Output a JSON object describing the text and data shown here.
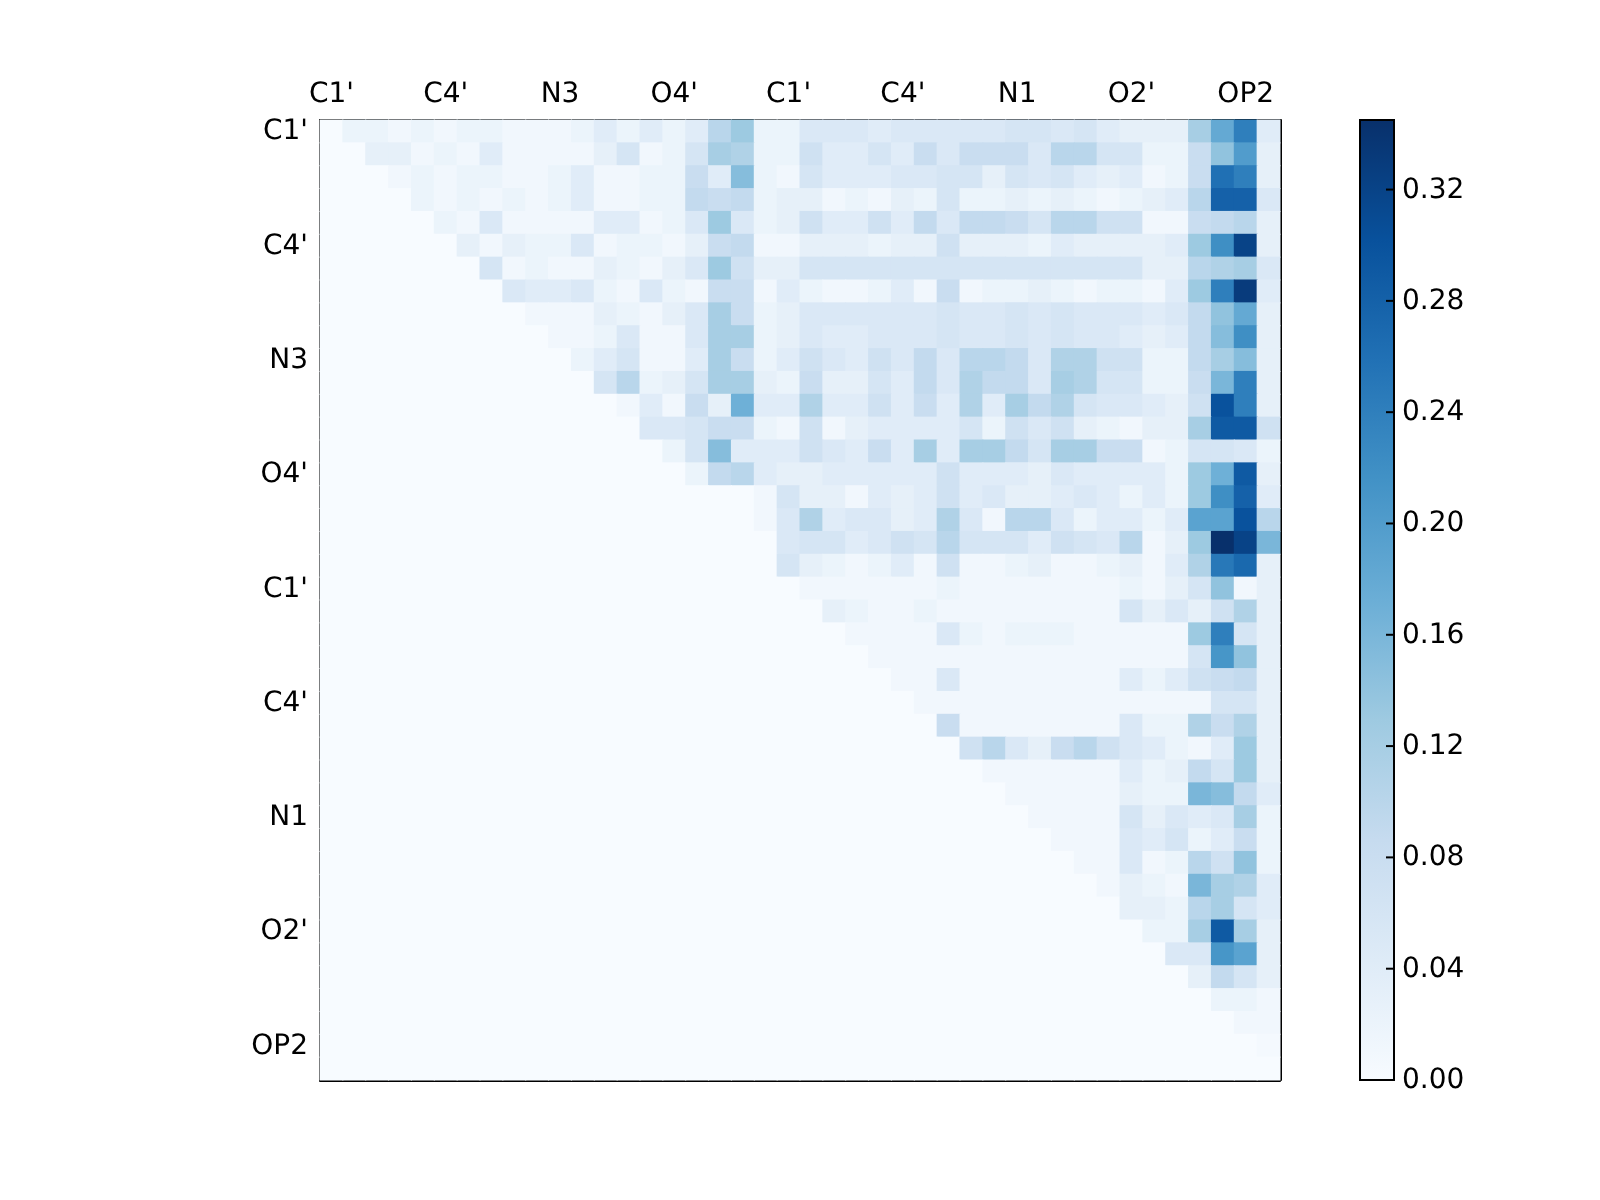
{
  "chart_data": {
    "type": "heatmap",
    "categories": [
      "C1'",
      null,
      null,
      null,
      null,
      "C4'",
      null,
      null,
      null,
      null,
      "N3",
      null,
      null,
      null,
      null,
      "O4'",
      null,
      null,
      null,
      null,
      "C1'",
      null,
      null,
      null,
      null,
      "C4'",
      null,
      null,
      null,
      null,
      "N1",
      null,
      null,
      null,
      null,
      "O2'",
      null,
      null,
      null,
      null,
      "OP2",
      null
    ],
    "y_categories": [
      "C1'",
      null,
      null,
      null,
      null,
      "C4'",
      null,
      null,
      null,
      null,
      "N3",
      null,
      null,
      null,
      null,
      "O4'",
      null,
      null,
      null,
      null,
      "C1'",
      null,
      null,
      null,
      null,
      "C4'",
      null,
      null,
      null,
      null,
      "N1",
      null,
      null,
      null,
      null,
      "O2'",
      null,
      null,
      null,
      null,
      "OP2",
      null
    ],
    "cells": [
      [
        0,
        0.02,
        0.02,
        0.01,
        0.02,
        0.01,
        0.02,
        0.02,
        0.01,
        0.01,
        0.01,
        0.02,
        0.04,
        0.02,
        0.04,
        0.02,
        0.04,
        0.1,
        0.13,
        0.02,
        0.02,
        0.05,
        0.05,
        0.05,
        0.04,
        0.05,
        0.05,
        0.05,
        0.05,
        0.05,
        0.06,
        0.06,
        0.05,
        0.06,
        0.04,
        0.03,
        0.03,
        0.03,
        0.12,
        0.18,
        0.24,
        0.04
      ],
      [
        0,
        0,
        0.03,
        0.03,
        0.01,
        0.02,
        0.01,
        0.04,
        0.01,
        0.01,
        0.01,
        0.01,
        0.03,
        0.06,
        0.01,
        0.02,
        0.06,
        0.12,
        0.11,
        0.02,
        0.02,
        0.07,
        0.04,
        0.04,
        0.06,
        0.04,
        0.08,
        0.05,
        0.08,
        0.08,
        0.08,
        0.05,
        0.1,
        0.1,
        0.06,
        0.06,
        0.02,
        0.02,
        0.08,
        0.14,
        0.2,
        0.03
      ],
      [
        0,
        0,
        0,
        0.01,
        0.02,
        0.01,
        0.02,
        0.02,
        0.01,
        0.01,
        0.02,
        0.04,
        0.01,
        0.01,
        0.02,
        0.02,
        0.08,
        0.04,
        0.15,
        0.02,
        0.01,
        0.06,
        0.04,
        0.04,
        0.04,
        0.05,
        0.05,
        0.06,
        0.06,
        0.03,
        0.06,
        0.05,
        0.06,
        0.04,
        0.03,
        0.04,
        0.01,
        0.02,
        0.08,
        0.26,
        0.24,
        0.03
      ],
      [
        0,
        0,
        0,
        0,
        0.02,
        0.01,
        0.02,
        0.01,
        0.02,
        0.01,
        0.02,
        0.04,
        0.01,
        0.01,
        0.02,
        0.02,
        0.09,
        0.08,
        0.09,
        0.02,
        0.03,
        0.03,
        0.01,
        0.02,
        0.01,
        0.03,
        0.02,
        0.06,
        0.02,
        0.02,
        0.03,
        0.02,
        0.03,
        0.02,
        0.01,
        0.02,
        0.03,
        0.04,
        0.1,
        0.28,
        0.28,
        0.05
      ],
      [
        0,
        0,
        0,
        0,
        0,
        0.02,
        0.01,
        0.05,
        0.01,
        0.01,
        0.01,
        0.01,
        0.04,
        0.04,
        0.01,
        0.02,
        0.05,
        0.13,
        0.05,
        0.02,
        0.03,
        0.07,
        0.04,
        0.04,
        0.07,
        0.04,
        0.09,
        0.05,
        0.09,
        0.09,
        0.08,
        0.06,
        0.1,
        0.1,
        0.07,
        0.07,
        0.01,
        0.01,
        0.08,
        0.09,
        0.1,
        0.03
      ],
      [
        0,
        0,
        0,
        0,
        0,
        0,
        0.03,
        0.01,
        0.03,
        0.02,
        0.02,
        0.05,
        0.01,
        0.02,
        0.02,
        0.01,
        0.03,
        0.08,
        0.09,
        0.01,
        0.01,
        0.03,
        0.03,
        0.03,
        0.02,
        0.03,
        0.03,
        0.07,
        0.03,
        0.03,
        0.03,
        0.02,
        0.04,
        0.03,
        0.03,
        0.03,
        0.03,
        0.04,
        0.13,
        0.22,
        0.32,
        0.03
      ],
      [
        0,
        0,
        0,
        0,
        0,
        0,
        0,
        0.06,
        0.01,
        0.02,
        0.01,
        0.01,
        0.03,
        0.02,
        0.01,
        0.03,
        0.05,
        0.13,
        0.07,
        0.03,
        0.03,
        0.06,
        0.06,
        0.06,
        0.06,
        0.06,
        0.06,
        0.06,
        0.06,
        0.06,
        0.06,
        0.06,
        0.06,
        0.06,
        0.06,
        0.06,
        0.03,
        0.03,
        0.1,
        0.11,
        0.12,
        0.05
      ],
      [
        0,
        0,
        0,
        0,
        0,
        0,
        0,
        0,
        0.05,
        0.04,
        0.04,
        0.05,
        0.02,
        0.01,
        0.05,
        0.02,
        0.01,
        0.08,
        0.08,
        0.01,
        0.04,
        0.02,
        0.01,
        0.01,
        0.02,
        0.04,
        0.01,
        0.08,
        0.01,
        0.02,
        0.02,
        0.03,
        0.02,
        0.01,
        0.02,
        0.02,
        0.01,
        0.04,
        0.13,
        0.24,
        0.33,
        0.04
      ],
      [
        0,
        0,
        0,
        0,
        0,
        0,
        0,
        0,
        0,
        0.01,
        0.01,
        0.01,
        0.03,
        0.02,
        0.01,
        0.03,
        0.05,
        0.12,
        0.08,
        0.02,
        0.03,
        0.05,
        0.05,
        0.05,
        0.05,
        0.05,
        0.05,
        0.06,
        0.05,
        0.05,
        0.06,
        0.05,
        0.06,
        0.05,
        0.05,
        0.05,
        0.04,
        0.05,
        0.09,
        0.14,
        0.18,
        0.03
      ],
      [
        0,
        0,
        0,
        0,
        0,
        0,
        0,
        0,
        0,
        0,
        0.01,
        0.01,
        0.02,
        0.05,
        0.01,
        0.01,
        0.05,
        0.12,
        0.12,
        0.02,
        0.03,
        0.05,
        0.04,
        0.04,
        0.05,
        0.05,
        0.05,
        0.06,
        0.05,
        0.05,
        0.06,
        0.05,
        0.06,
        0.05,
        0.05,
        0.04,
        0.03,
        0.04,
        0.09,
        0.15,
        0.22,
        0.03
      ],
      [
        0,
        0,
        0,
        0,
        0,
        0,
        0,
        0,
        0,
        0,
        0,
        0.02,
        0.04,
        0.06,
        0.01,
        0.01,
        0.04,
        0.12,
        0.08,
        0.02,
        0.04,
        0.07,
        0.05,
        0.04,
        0.07,
        0.05,
        0.09,
        0.05,
        0.1,
        0.1,
        0.09,
        0.05,
        0.11,
        0.11,
        0.07,
        0.07,
        0.02,
        0.02,
        0.09,
        0.12,
        0.15,
        0.03
      ],
      [
        0,
        0,
        0,
        0,
        0,
        0,
        0,
        0,
        0,
        0,
        0,
        0,
        0.06,
        0.1,
        0.02,
        0.03,
        0.06,
        0.12,
        0.12,
        0.03,
        0.02,
        0.08,
        0.03,
        0.03,
        0.06,
        0.04,
        0.09,
        0.05,
        0.11,
        0.09,
        0.09,
        0.05,
        0.12,
        0.11,
        0.06,
        0.06,
        0.02,
        0.02,
        0.08,
        0.16,
        0.24,
        0.03
      ],
      [
        0,
        0,
        0,
        0,
        0,
        0,
        0,
        0,
        0,
        0,
        0,
        0,
        0,
        0.01,
        0.04,
        0.01,
        0.08,
        0.03,
        0.17,
        0.04,
        0.04,
        0.11,
        0.04,
        0.04,
        0.07,
        0.04,
        0.08,
        0.04,
        0.11,
        0.04,
        0.12,
        0.09,
        0.11,
        0.06,
        0.05,
        0.05,
        0.04,
        0.03,
        0.07,
        0.3,
        0.24,
        0.03
      ],
      [
        0,
        0,
        0,
        0,
        0,
        0,
        0,
        0,
        0,
        0,
        0,
        0,
        0,
        0,
        0.05,
        0.05,
        0.06,
        0.08,
        0.08,
        0.02,
        0.01,
        0.07,
        0.01,
        0.03,
        0.04,
        0.04,
        0.04,
        0.04,
        0.06,
        0.02,
        0.07,
        0.05,
        0.07,
        0.03,
        0.02,
        0.01,
        0.03,
        0.03,
        0.12,
        0.29,
        0.29,
        0.07
      ],
      [
        0,
        0,
        0,
        0,
        0,
        0,
        0,
        0,
        0,
        0,
        0,
        0,
        0,
        0,
        0,
        0.02,
        0.06,
        0.15,
        0.04,
        0.04,
        0.04,
        0.07,
        0.05,
        0.04,
        0.08,
        0.04,
        0.12,
        0.04,
        0.12,
        0.12,
        0.09,
        0.06,
        0.12,
        0.12,
        0.08,
        0.08,
        0.01,
        0.02,
        0.06,
        0.06,
        0.05,
        0.02
      ],
      [
        0,
        0,
        0,
        0,
        0,
        0,
        0,
        0,
        0,
        0,
        0,
        0,
        0,
        0,
        0,
        0,
        0.02,
        0.09,
        0.1,
        0.04,
        0.03,
        0.03,
        0.04,
        0.04,
        0.04,
        0.04,
        0.04,
        0.07,
        0.04,
        0.04,
        0.04,
        0.03,
        0.05,
        0.04,
        0.04,
        0.04,
        0.04,
        0.02,
        0.13,
        0.17,
        0.29,
        0.03
      ],
      [
        0,
        0,
        0,
        0,
        0,
        0,
        0,
        0,
        0,
        0,
        0,
        0,
        0,
        0,
        0,
        0,
        0,
        0,
        0,
        0.01,
        0.06,
        0.03,
        0.03,
        0.01,
        0.04,
        0.03,
        0.04,
        0.07,
        0.04,
        0.05,
        0.03,
        0.03,
        0.04,
        0.05,
        0.04,
        0.02,
        0.04,
        0.02,
        0.13,
        0.22,
        0.28,
        0.04
      ],
      [
        0,
        0,
        0,
        0,
        0,
        0,
        0,
        0,
        0,
        0,
        0,
        0,
        0,
        0,
        0,
        0,
        0,
        0,
        0,
        0.01,
        0.05,
        0.11,
        0.04,
        0.05,
        0.05,
        0.03,
        0.04,
        0.11,
        0.05,
        0.01,
        0.1,
        0.1,
        0.05,
        0.02,
        0.04,
        0.04,
        0.02,
        0.04,
        0.19,
        0.19,
        0.3,
        0.1
      ],
      [
        0,
        0,
        0,
        0,
        0,
        0,
        0,
        0,
        0,
        0,
        0,
        0,
        0,
        0,
        0,
        0,
        0,
        0,
        0,
        0,
        0.05,
        0.06,
        0.06,
        0.04,
        0.05,
        0.07,
        0.06,
        0.1,
        0.06,
        0.06,
        0.06,
        0.04,
        0.07,
        0.06,
        0.05,
        0.1,
        0.01,
        0.03,
        0.13,
        0.345,
        0.32,
        0.16
      ],
      [
        0,
        0,
        0,
        0,
        0,
        0,
        0,
        0,
        0,
        0,
        0,
        0,
        0,
        0,
        0,
        0,
        0,
        0,
        0,
        0,
        0.06,
        0.03,
        0.02,
        0.01,
        0.02,
        0.04,
        0.01,
        0.07,
        0.01,
        0.01,
        0.02,
        0.03,
        0.01,
        0.01,
        0.02,
        0.03,
        0.01,
        0.04,
        0.11,
        0.25,
        0.27,
        0.03
      ],
      [
        0,
        0,
        0,
        0,
        0,
        0,
        0,
        0,
        0,
        0,
        0,
        0,
        0,
        0,
        0,
        0,
        0,
        0,
        0,
        0,
        0,
        0.01,
        0.01,
        0.01,
        0.01,
        0.01,
        0.01,
        0.02,
        0.01,
        0.01,
        0.01,
        0.01,
        0.01,
        0.01,
        0.01,
        0.02,
        0.01,
        0.03,
        0.06,
        0.14,
        0.01,
        0.03
      ],
      [
        0,
        0,
        0,
        0,
        0,
        0,
        0,
        0,
        0,
        0,
        0,
        0,
        0,
        0,
        0,
        0,
        0,
        0,
        0,
        0,
        0,
        0,
        0.03,
        0.02,
        0.01,
        0.01,
        0.02,
        0.01,
        0.01,
        0.01,
        0.01,
        0.01,
        0.01,
        0.01,
        0.01,
        0.06,
        0.03,
        0.05,
        0.03,
        0.07,
        0.11,
        0.03
      ],
      [
        0,
        0,
        0,
        0,
        0,
        0,
        0,
        0,
        0,
        0,
        0,
        0,
        0,
        0,
        0,
        0,
        0,
        0,
        0,
        0,
        0,
        0,
        0,
        0.01,
        0.01,
        0.01,
        0.01,
        0.05,
        0.02,
        0.01,
        0.02,
        0.02,
        0.02,
        0.01,
        0.01,
        0.01,
        0.01,
        0.01,
        0.13,
        0.24,
        0.06,
        0.03
      ],
      [
        0,
        0,
        0,
        0,
        0,
        0,
        0,
        0,
        0,
        0,
        0,
        0,
        0,
        0,
        0,
        0,
        0,
        0,
        0,
        0,
        0,
        0,
        0,
        0,
        0.01,
        0.01,
        0.01,
        0.01,
        0.01,
        0.01,
        0.01,
        0.01,
        0.01,
        0.01,
        0.01,
        0.01,
        0.01,
        0.01,
        0.06,
        0.21,
        0.14,
        0.03
      ],
      [
        0,
        0,
        0,
        0,
        0,
        0,
        0,
        0,
        0,
        0,
        0,
        0,
        0,
        0,
        0,
        0,
        0,
        0,
        0,
        0,
        0,
        0,
        0,
        0,
        0,
        0.01,
        0.01,
        0.05,
        0.01,
        0.01,
        0.01,
        0.01,
        0.01,
        0.01,
        0.01,
        0.04,
        0.02,
        0.04,
        0.07,
        0.08,
        0.09,
        0.03
      ],
      [
        0,
        0,
        0,
        0,
        0,
        0,
        0,
        0,
        0,
        0,
        0,
        0,
        0,
        0,
        0,
        0,
        0,
        0,
        0,
        0,
        0,
        0,
        0,
        0,
        0,
        0,
        0.01,
        0.01,
        0.01,
        0.01,
        0.01,
        0.01,
        0.01,
        0.01,
        0.01,
        0.01,
        0.01,
        0.01,
        0.01,
        0.06,
        0.06,
        0.03
      ],
      [
        0,
        0,
        0,
        0,
        0,
        0,
        0,
        0,
        0,
        0,
        0,
        0,
        0,
        0,
        0,
        0,
        0,
        0,
        0,
        0,
        0,
        0,
        0,
        0,
        0,
        0,
        0,
        0.08,
        0.01,
        0.01,
        0.01,
        0.01,
        0.01,
        0.01,
        0.01,
        0.05,
        0.02,
        0.02,
        0.11,
        0.08,
        0.11,
        0.03
      ],
      [
        0,
        0,
        0,
        0,
        0,
        0,
        0,
        0,
        0,
        0,
        0,
        0,
        0,
        0,
        0,
        0,
        0,
        0,
        0,
        0,
        0,
        0,
        0,
        0,
        0,
        0,
        0,
        0,
        0.07,
        0.1,
        0.05,
        0.03,
        0.08,
        0.1,
        0.07,
        0.05,
        0.04,
        0.02,
        0.01,
        0.04,
        0.13,
        0.03
      ],
      [
        0,
        0,
        0,
        0,
        0,
        0,
        0,
        0,
        0,
        0,
        0,
        0,
        0,
        0,
        0,
        0,
        0,
        0,
        0,
        0,
        0,
        0,
        0,
        0,
        0,
        0,
        0,
        0,
        0,
        0.01,
        0.01,
        0.01,
        0.01,
        0.01,
        0.01,
        0.04,
        0.02,
        0.03,
        0.09,
        0.06,
        0.13,
        0.03
      ],
      [
        0,
        0,
        0,
        0,
        0,
        0,
        0,
        0,
        0,
        0,
        0,
        0,
        0,
        0,
        0,
        0,
        0,
        0,
        0,
        0,
        0,
        0,
        0,
        0,
        0,
        0,
        0,
        0,
        0,
        0,
        0.01,
        0.01,
        0.01,
        0.01,
        0.01,
        0.03,
        0.02,
        0.02,
        0.16,
        0.15,
        0.09,
        0.04
      ],
      [
        0,
        0,
        0,
        0,
        0,
        0,
        0,
        0,
        0,
        0,
        0,
        0,
        0,
        0,
        0,
        0,
        0,
        0,
        0,
        0,
        0,
        0,
        0,
        0,
        0,
        0,
        0,
        0,
        0,
        0,
        0,
        0.01,
        0.01,
        0.01,
        0.01,
        0.06,
        0.03,
        0.05,
        0.04,
        0.05,
        0.12,
        0.02
      ],
      [
        0,
        0,
        0,
        0,
        0,
        0,
        0,
        0,
        0,
        0,
        0,
        0,
        0,
        0,
        0,
        0,
        0,
        0,
        0,
        0,
        0,
        0,
        0,
        0,
        0,
        0,
        0,
        0,
        0,
        0,
        0,
        0,
        0.01,
        0.01,
        0.01,
        0.05,
        0.04,
        0.06,
        0.02,
        0.04,
        0.08,
        0.02
      ],
      [
        0,
        0,
        0,
        0,
        0,
        0,
        0,
        0,
        0,
        0,
        0,
        0,
        0,
        0,
        0,
        0,
        0,
        0,
        0,
        0,
        0,
        0,
        0,
        0,
        0,
        0,
        0,
        0,
        0,
        0,
        0,
        0,
        0,
        0.01,
        0.01,
        0.05,
        0.01,
        0.02,
        0.1,
        0.07,
        0.14,
        0.02
      ],
      [
        0,
        0,
        0,
        0,
        0,
        0,
        0,
        0,
        0,
        0,
        0,
        0,
        0,
        0,
        0,
        0,
        0,
        0,
        0,
        0,
        0,
        0,
        0,
        0,
        0,
        0,
        0,
        0,
        0,
        0,
        0,
        0,
        0,
        0,
        0.01,
        0.03,
        0.02,
        0.01,
        0.16,
        0.12,
        0.11,
        0.04
      ],
      [
        0,
        0,
        0,
        0,
        0,
        0,
        0,
        0,
        0,
        0,
        0,
        0,
        0,
        0,
        0,
        0,
        0,
        0,
        0,
        0,
        0,
        0,
        0,
        0,
        0,
        0,
        0,
        0,
        0,
        0,
        0,
        0,
        0,
        0,
        0,
        0.03,
        0.03,
        0.02,
        0.1,
        0.12,
        0.06,
        0.04
      ],
      [
        0,
        0,
        0,
        0,
        0,
        0,
        0,
        0,
        0,
        0,
        0,
        0,
        0,
        0,
        0,
        0,
        0,
        0,
        0,
        0,
        0,
        0,
        0,
        0,
        0,
        0,
        0,
        0,
        0,
        0,
        0,
        0,
        0,
        0,
        0,
        0,
        0.02,
        0.02,
        0.12,
        0.29,
        0.12,
        0.03
      ],
      [
        0,
        0,
        0,
        0,
        0,
        0,
        0,
        0,
        0,
        0,
        0,
        0,
        0,
        0,
        0,
        0,
        0,
        0,
        0,
        0,
        0,
        0,
        0,
        0,
        0,
        0,
        0,
        0,
        0,
        0,
        0,
        0,
        0,
        0,
        0,
        0,
        0,
        0.05,
        0.05,
        0.21,
        0.19,
        0.03
      ],
      [
        0,
        0,
        0,
        0,
        0,
        0,
        0,
        0,
        0,
        0,
        0,
        0,
        0,
        0,
        0,
        0,
        0,
        0,
        0,
        0,
        0,
        0,
        0,
        0,
        0,
        0,
        0,
        0,
        0,
        0,
        0,
        0,
        0,
        0,
        0,
        0,
        0,
        0,
        0.03,
        0.09,
        0.06,
        0.03
      ],
      [
        0,
        0,
        0,
        0,
        0,
        0,
        0,
        0,
        0,
        0,
        0,
        0,
        0,
        0,
        0,
        0,
        0,
        0,
        0,
        0,
        0,
        0,
        0,
        0,
        0,
        0,
        0,
        0,
        0,
        0,
        0,
        0,
        0,
        0,
        0,
        0,
        0,
        0,
        0,
        0.02,
        0.02,
        0.01
      ],
      [
        0,
        0,
        0,
        0,
        0,
        0,
        0,
        0,
        0,
        0,
        0,
        0,
        0,
        0,
        0,
        0,
        0,
        0,
        0,
        0,
        0,
        0,
        0,
        0,
        0,
        0,
        0,
        0,
        0,
        0,
        0,
        0,
        0,
        0,
        0,
        0,
        0,
        0,
        0,
        0,
        0.01,
        0.01
      ],
      [
        0,
        0,
        0,
        0,
        0,
        0,
        0,
        0,
        0,
        0,
        0,
        0,
        0,
        0,
        0,
        0,
        0,
        0,
        0,
        0,
        0,
        0,
        0,
        0,
        0,
        0,
        0,
        0,
        0,
        0,
        0,
        0,
        0,
        0,
        0,
        0,
        0,
        0,
        0,
        0,
        0,
        0.005
      ],
      [
        0,
        0,
        0,
        0,
        0,
        0,
        0,
        0,
        0,
        0,
        0,
        0,
        0,
        0,
        0,
        0,
        0,
        0,
        0,
        0,
        0,
        0,
        0,
        0,
        0,
        0,
        0,
        0,
        0,
        0,
        0,
        0,
        0,
        0,
        0,
        0,
        0,
        0,
        0,
        0,
        0,
        0
      ]
    ],
    "clim": [
      0,
      0.345
    ],
    "cticks": [
      {
        "value": 0,
        "label": "0.00"
      },
      {
        "value": 0.04,
        "label": "0.04"
      },
      {
        "value": 0.08,
        "label": "0.08"
      },
      {
        "value": 0.12,
        "label": "0.12"
      },
      {
        "value": 0.16,
        "label": "0.16"
      },
      {
        "value": 0.2,
        "label": "0.20"
      },
      {
        "value": 0.24,
        "label": "0.24"
      },
      {
        "value": 0.28,
        "label": "0.28"
      },
      {
        "value": 0.32,
        "label": "0.32"
      }
    ]
  }
}
